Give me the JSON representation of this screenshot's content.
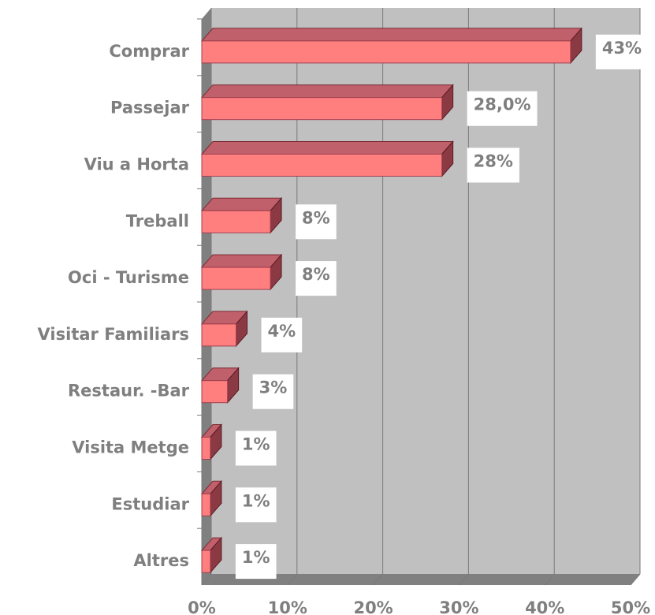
{
  "chart_data": {
    "type": "bar",
    "orientation": "horizontal",
    "categories": [
      "Comprar",
      "Passejar",
      "Viu a Horta",
      "Treball",
      "Oci - Turisme",
      "Visitar Familiars",
      "Restaur. -Bar",
      "Visita Metge",
      "Estudiar",
      "Altres"
    ],
    "values": [
      43,
      28,
      28,
      8,
      8,
      4,
      3,
      1,
      1,
      1
    ],
    "value_labels": [
      "43%",
      "28,0%",
      "28%",
      "8%",
      "8%",
      "4%",
      "3%",
      "1%",
      "1%",
      "1%"
    ],
    "color": "#ff7f7f",
    "xlim": [
      0,
      50
    ],
    "xticks": [
      {
        "value": 0,
        "label": "0%"
      },
      {
        "value": 10,
        "label": "10%"
      },
      {
        "value": 20,
        "label": "20%"
      },
      {
        "value": 30,
        "label": "30%"
      },
      {
        "value": 40,
        "label": "40%"
      },
      {
        "value": 50,
        "label": "50%"
      }
    ],
    "grid": true
  }
}
